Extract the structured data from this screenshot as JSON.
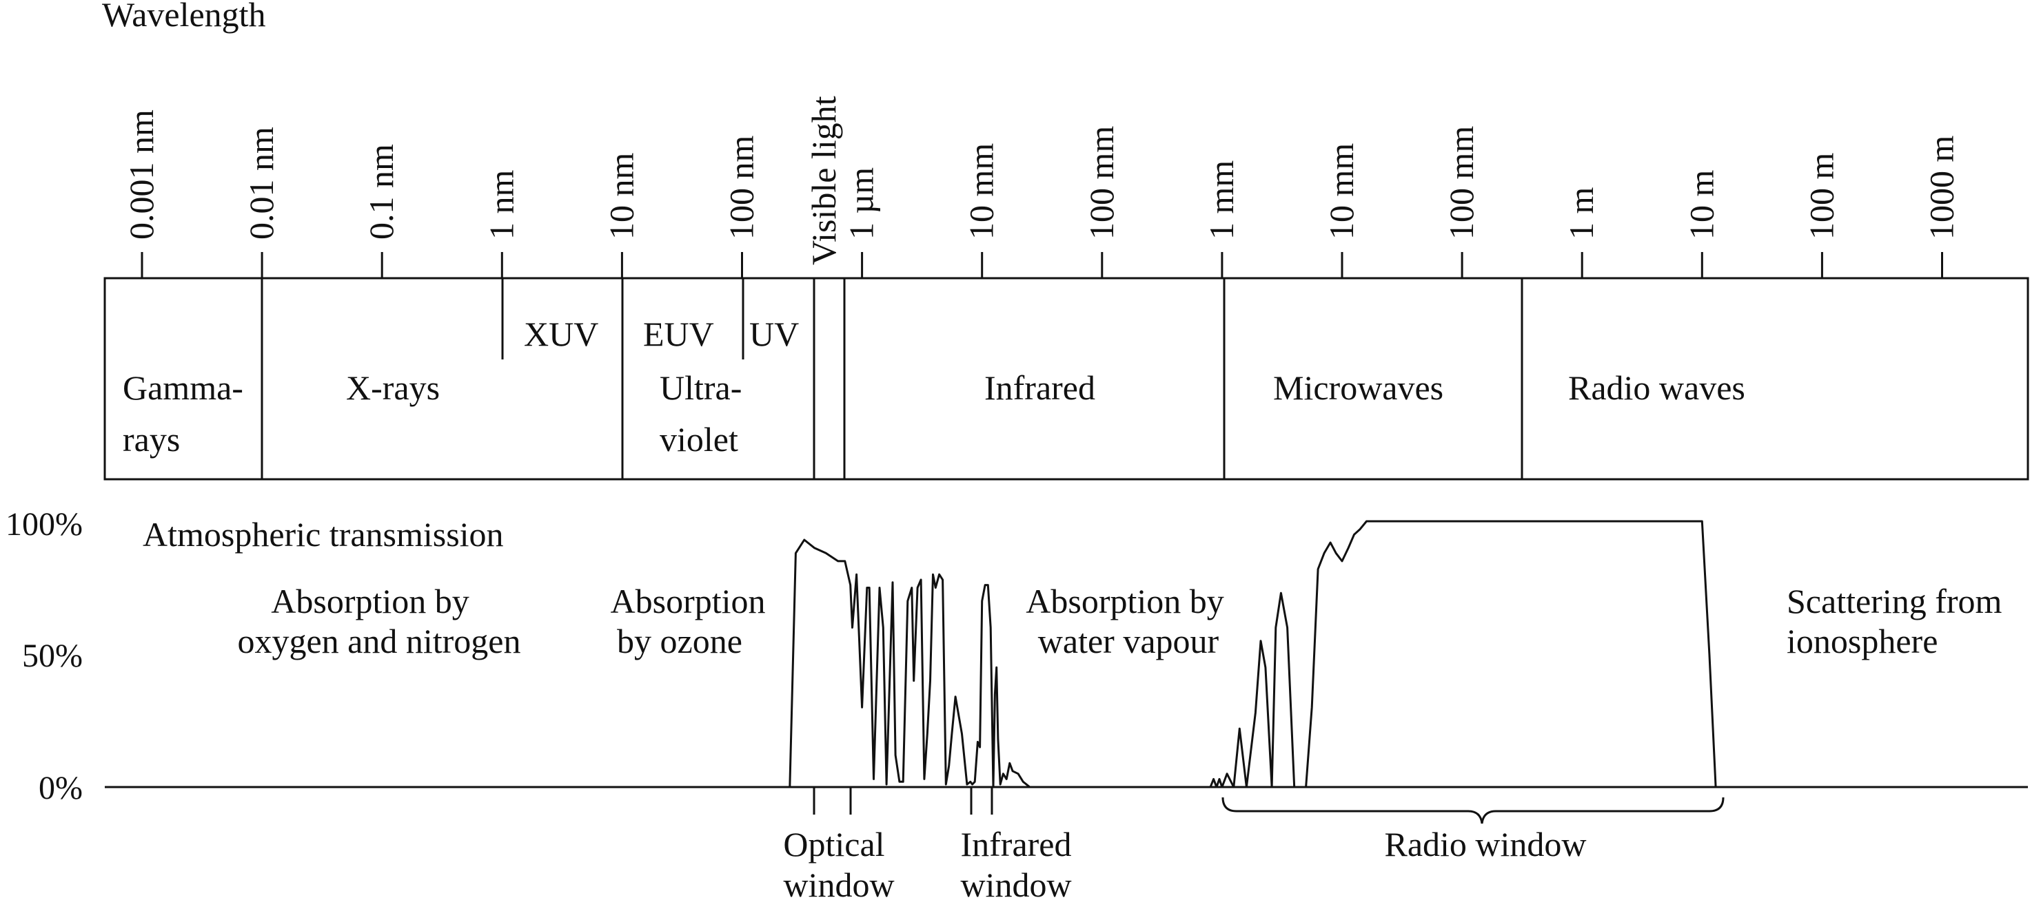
{
  "title": "Wavelength",
  "wavelength_ticks": [
    "0.001 nm",
    "0.01 nm",
    "0.1 nm",
    "1 nm",
    "10 nm",
    "100 nm",
    "1 µm",
    "10 mm",
    "100  mm",
    "1 mm",
    "10 mm",
    "100 mm",
    "1 m",
    "10 m",
    "100 m",
    "1000 m"
  ],
  "visible_light_label": "Visible light",
  "bands": {
    "gamma": [
      "Gamma-",
      "rays"
    ],
    "xrays": "X-rays",
    "xuv": "XUV",
    "euv": "EUV",
    "uv": "UV",
    "ultraviolet": [
      "Ultra-",
      "violet"
    ],
    "infrared": "Infrared",
    "microwaves": "Microwaves",
    "radio": "Radio waves"
  },
  "transmission": {
    "title": "Atmospheric transmission",
    "y_ticks": [
      "100%",
      "50%",
      "0%"
    ],
    "absorption_labels": [
      [
        "Absorption by",
        "oxygen and nitrogen"
      ],
      [
        "Absorption",
        "by ozone"
      ],
      [
        "Absorption by",
        "water vapour"
      ],
      [
        "Scattering from",
        "ionosphere"
      ]
    ],
    "windows": [
      [
        "Optical",
        "window"
      ],
      [
        "Infrared",
        "window"
      ],
      [
        "Radio window"
      ]
    ]
  },
  "chart_data": {
    "type": "line",
    "ylabel": "",
    "xlabel": "",
    "ylim": [
      0,
      100
    ],
    "x_scale": "log",
    "x_unit": "m",
    "xlim": [
      1e-12,
      10000
    ],
    "series": [
      {
        "x": [
          2.5e-07,
          2.8e-07,
          3.3e-07,
          4e-07,
          5e-07,
          6.3e-07,
          7.2e-07,
          8e-07,
          8.3e-07,
          9e-07,
          1e-06,
          1.1e-06,
          1.15e-06,
          1.25e-06,
          1.4e-06,
          1.5e-06,
          1.6e-06,
          1.8e-06,
          1.9e-06,
          2.05e-06,
          2.2e-06,
          2.4e-06,
          2.6e-06,
          2.7e-06,
          2.9e-06,
          3.1e-06,
          3.3e-06,
          3.5e-06,
          3.7e-06,
          3.9e-06,
          4.1e-06,
          4.4e-06,
          4.7e-06,
          5e-06,
          5.3e-06,
          5.6e-06,
          6e-06,
          6.8e-06,
          7.5e-06,
          8e-06,
          8.3e-06,
          8.7e-06,
          9.2e-06,
          9.6e-06,
          1e-05,
          1.06e-05,
          1.12e-05,
          1.18e-05,
          1.24e-05,
          1.28e-05,
          1.32e-05,
          1.36e-05,
          1.42e-05,
          1.5e-05,
          1.6e-05,
          1.7e-05,
          1.8e-05,
          2e-05,
          2.2e-05,
          2.5e-05
        ],
        "y": [
          0,
          88,
          93,
          90,
          88,
          85,
          85,
          76,
          60,
          80,
          30,
          75,
          75,
          3,
          75,
          60,
          1,
          77,
          12,
          2,
          2,
          70,
          75,
          40,
          75,
          78,
          3,
          20,
          40,
          80,
          75,
          80,
          78,
          1,
          8,
          20,
          34,
          20,
          1,
          2,
          1,
          2,
          17,
          15,
          70,
          76,
          76,
          60,
          0,
          35,
          45,
          18,
          1,
          5,
          3,
          9,
          6,
          5,
          2,
          0
        ]
      },
      {
        "x": [
          0.0008,
          0.00085,
          0.0009,
          0.00095,
          0.001,
          0.0011,
          0.00125,
          0.0014,
          0.0016,
          0.0019,
          0.0021,
          0.0023,
          0.0026,
          0.0028,
          0.0031,
          0.0035,
          0.004,
          0.005,
          0.0056,
          0.0063,
          0.0071,
          0.008,
          0.0089,
          0.01,
          0.0113,
          0.0126,
          0.0141,
          0.016,
          0.018,
          0.02,
          0.02,
          0.05,
          0.1,
          0.5,
          1,
          5,
          10,
          11.5,
          13
        ],
        "y": [
          0,
          3,
          0,
          3,
          0,
          5,
          0,
          22,
          0,
          28,
          55,
          45,
          0,
          60,
          73,
          60,
          0,
          0,
          30,
          82,
          88,
          92,
          88,
          85,
          90,
          95,
          97,
          100,
          100,
          100,
          100,
          100,
          100,
          100,
          100,
          100,
          100,
          50,
          0
        ]
      }
    ]
  }
}
